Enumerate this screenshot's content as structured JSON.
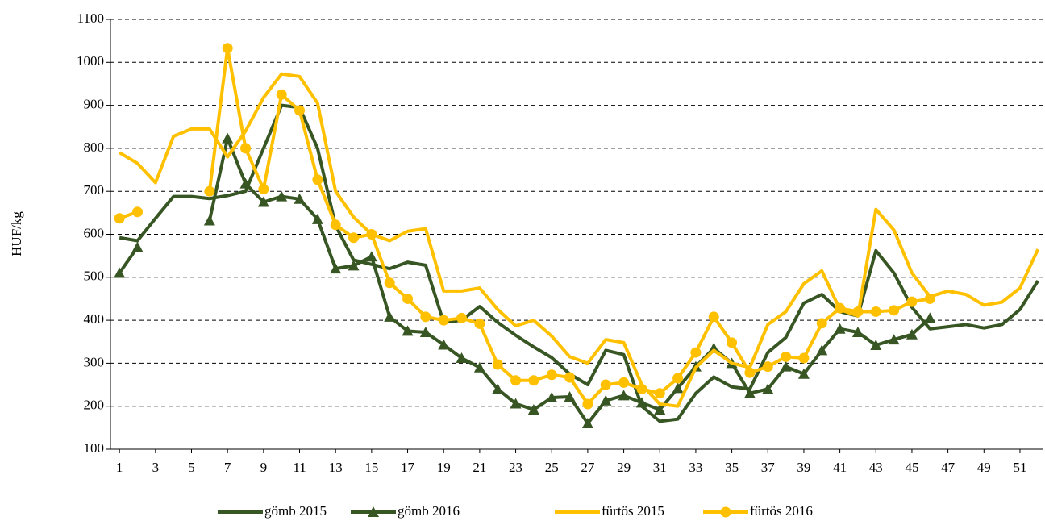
{
  "chart_data": {
    "type": "line",
    "y_label": "HUF/kg",
    "x": [
      1,
      2,
      3,
      4,
      5,
      6,
      7,
      8,
      9,
      10,
      11,
      12,
      13,
      14,
      15,
      16,
      17,
      18,
      19,
      20,
      21,
      22,
      23,
      24,
      25,
      26,
      27,
      28,
      29,
      30,
      31,
      32,
      33,
      34,
      35,
      36,
      37,
      38,
      39,
      40,
      41,
      42,
      43,
      44,
      45,
      46,
      47,
      48,
      49,
      50,
      51,
      52
    ],
    "xlim": [
      0.5,
      52.3
    ],
    "xticks": [
      1,
      3,
      5,
      7,
      9,
      11,
      13,
      15,
      17,
      19,
      21,
      23,
      25,
      27,
      29,
      31,
      33,
      35,
      37,
      39,
      41,
      43,
      45,
      47,
      49,
      51
    ],
    "ylim": [
      100,
      1100
    ],
    "yticks": [
      100,
      200,
      300,
      400,
      500,
      600,
      700,
      800,
      900,
      1000,
      1100
    ],
    "grid": true,
    "legend": "bottom",
    "series": [
      {
        "name": "gömb 2015",
        "color": "#375623",
        "values": [
          592,
          585,
          637,
          688,
          688,
          683,
          690,
          700,
          800,
          900,
          895,
          800,
          620,
          540,
          530,
          520,
          535,
          528,
          395,
          400,
          432,
          395,
          365,
          338,
          313,
          275,
          250,
          330,
          320,
          200,
          165,
          170,
          230,
          268,
          245,
          240,
          325,
          360,
          440,
          460,
          420,
          410,
          562,
          510,
          430,
          380,
          385,
          390,
          382,
          390,
          425,
          492
        ]
      },
      {
        "name": "gömb 2016",
        "color": "#375623",
        "marker": "triangle",
        "values": [
          510,
          570,
          null,
          null,
          null,
          632,
          823,
          718,
          675,
          688,
          682,
          635,
          520,
          527,
          548,
          408,
          375,
          372,
          343,
          312,
          290,
          240,
          206,
          192,
          220,
          222,
          160,
          213,
          225,
          208,
          192,
          242,
          292,
          335,
          300,
          230,
          240,
          292,
          275,
          330,
          380,
          372,
          342,
          355,
          367,
          405,
          null,
          null,
          null,
          null,
          null,
          null
        ]
      },
      {
        "name": "fürtös 2015",
        "color": "#ffc000",
        "values": [
          790,
          765,
          720,
          828,
          845,
          845,
          780,
          840,
          918,
          973,
          967,
          905,
          700,
          640,
          600,
          585,
          607,
          613,
          468,
          468,
          475,
          425,
          387,
          400,
          363,
          315,
          300,
          355,
          348,
          250,
          205,
          200,
          290,
          330,
          300,
          290,
          390,
          420,
          485,
          515,
          425,
          410,
          658,
          610,
          510,
          455,
          468,
          460,
          435,
          442,
          475,
          565
        ]
      },
      {
        "name": "fürtös 2016",
        "color": "#ffc000",
        "marker": "circle",
        "values": [
          637,
          652,
          null,
          null,
          null,
          700,
          1033,
          800,
          705,
          925,
          888,
          727,
          622,
          592,
          600,
          487,
          450,
          408,
          400,
          405,
          392,
          297,
          260,
          260,
          273,
          267,
          205,
          250,
          255,
          240,
          230,
          265,
          325,
          408,
          348,
          278,
          292,
          315,
          312,
          393,
          428,
          420,
          420,
          423,
          443,
          450,
          null,
          null,
          null,
          null,
          null,
          null
        ]
      }
    ]
  }
}
